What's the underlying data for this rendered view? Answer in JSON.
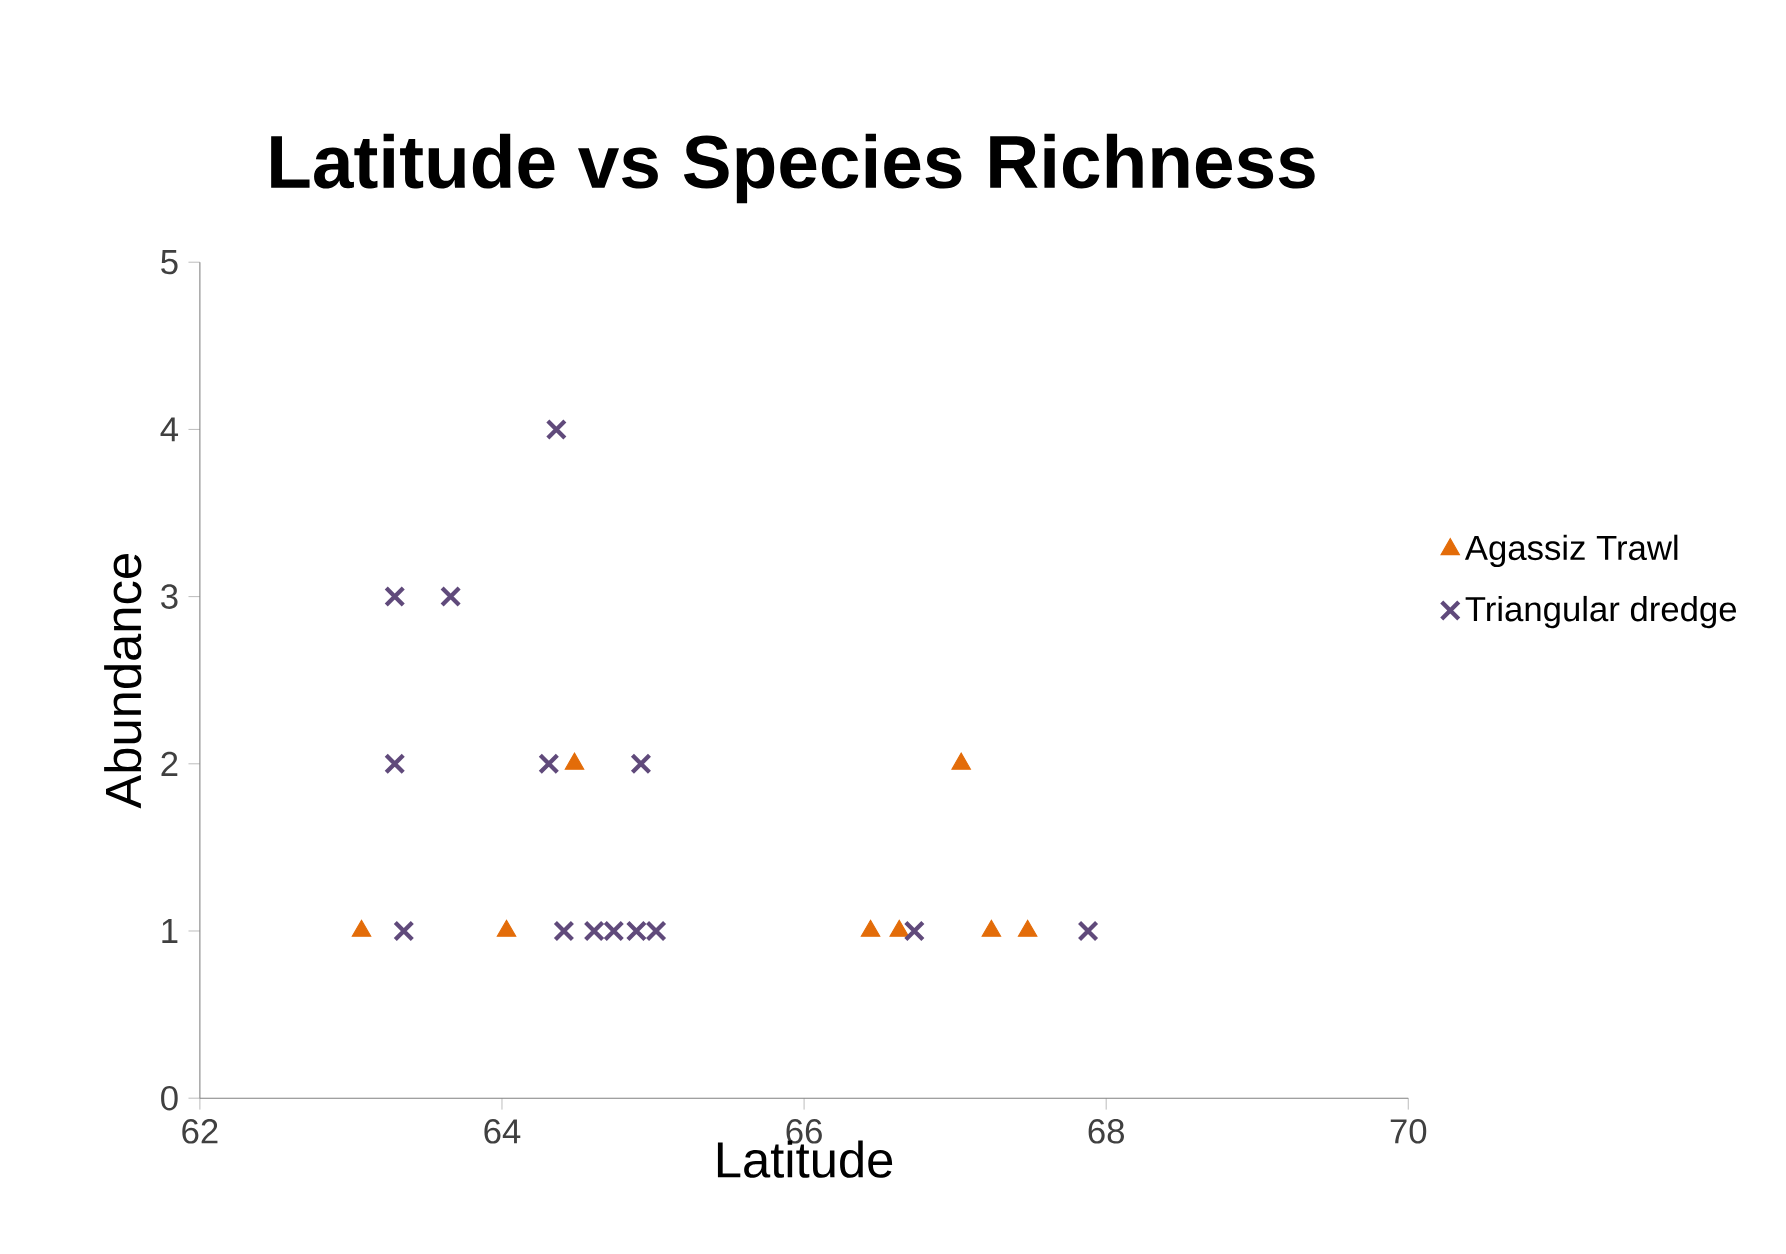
{
  "chart_data": {
    "type": "scatter",
    "title": "Latitude vs Species Richness",
    "xlabel": "Latitude",
    "ylabel": "Abundance",
    "xlim": [
      62,
      70
    ],
    "ylim": [
      0,
      5
    ],
    "xticks": [
      62,
      64,
      66,
      68,
      70
    ],
    "yticks": [
      0,
      1,
      2,
      3,
      4,
      5
    ],
    "grid": false,
    "legend": "right",
    "series": [
      {
        "name": "Agassiz Trawl",
        "color": "#e36c09",
        "marker": "triangle",
        "x": [
          63.07,
          64.03,
          64.48,
          66.44,
          66.63,
          67.04,
          67.24,
          67.48
        ],
        "values": [
          1,
          1,
          2,
          1,
          1,
          2,
          1,
          1
        ]
      },
      {
        "name": "Triangular dredge",
        "color": "#604a7b",
        "marker": "cross",
        "x": [
          64.36,
          63.29,
          63.66,
          63.29,
          64.31,
          64.92,
          63.35,
          64.41,
          64.61,
          64.74,
          64.89,
          65.02,
          66.73,
          67.88
        ],
        "values": [
          4,
          3,
          3,
          2,
          2,
          2,
          1,
          1,
          1,
          1,
          1,
          1,
          1,
          1
        ]
      }
    ]
  }
}
